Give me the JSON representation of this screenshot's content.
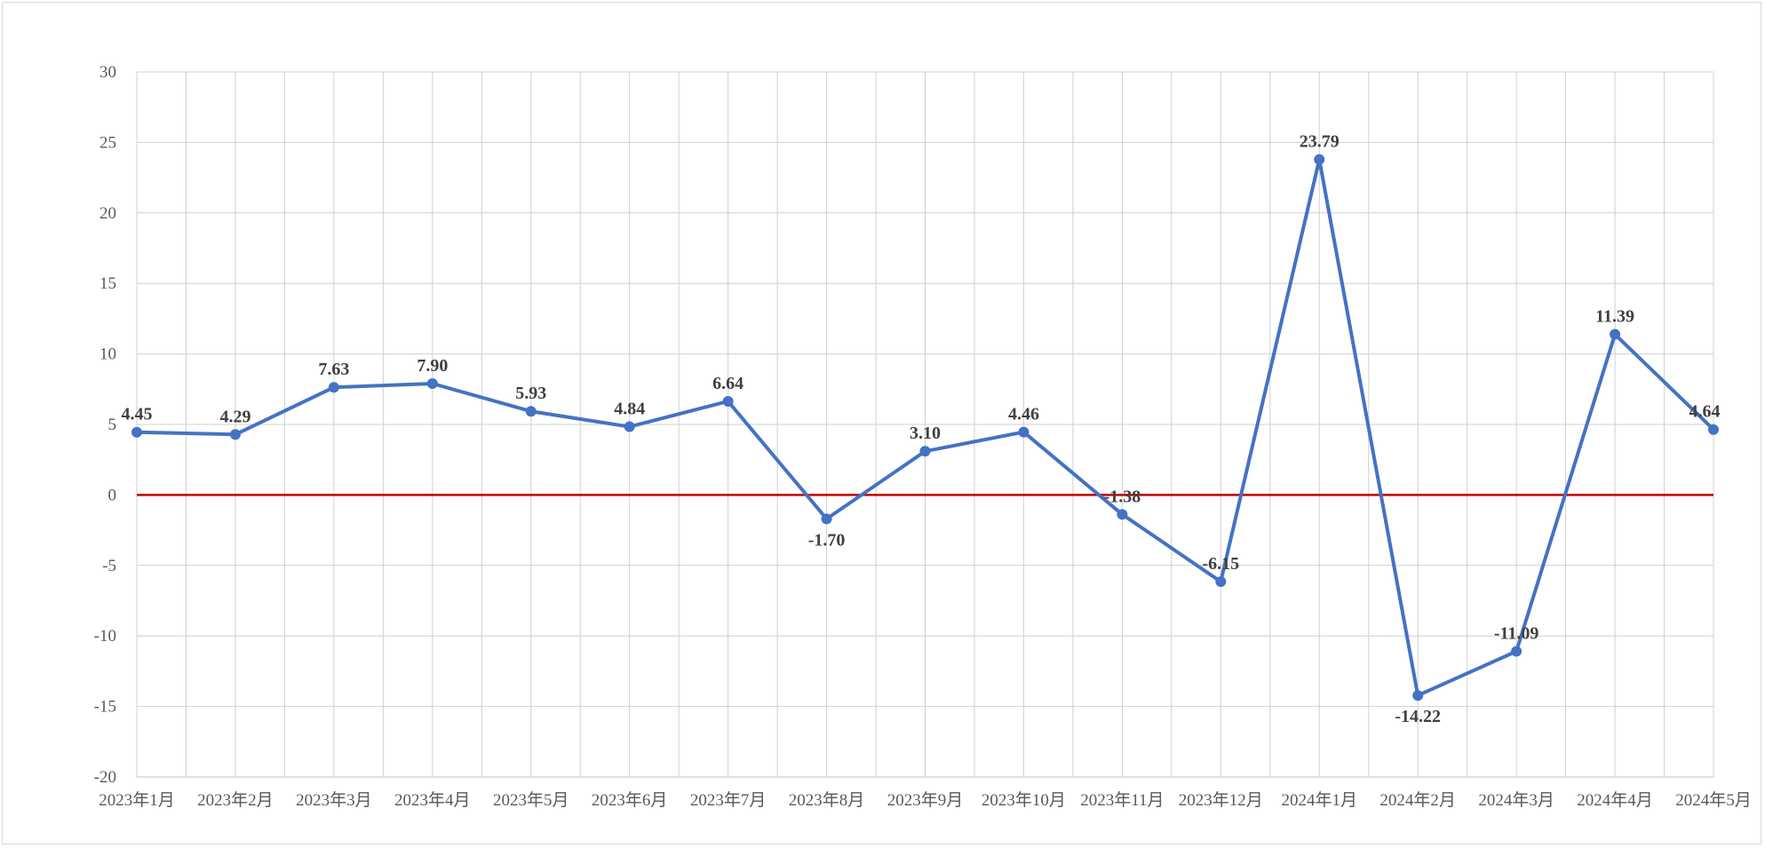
{
  "chart_data": {
    "type": "line",
    "title": "",
    "xlabel": "",
    "ylabel": "",
    "categories": [
      "2023年1月",
      "2023年2月",
      "2023年3月",
      "2023年4月",
      "2023年5月",
      "2023年6月",
      "2023年7月",
      "2023年8月",
      "2023年9月",
      "2023年10月",
      "2023年11月",
      "2023年12月",
      "2024年1月",
      "2024年2月",
      "2024年3月",
      "2024年4月",
      "2024年5月"
    ],
    "series": [
      {
        "values": [
          4.45,
          4.29,
          7.63,
          7.9,
          5.93,
          4.84,
          6.64,
          -1.7,
          3.1,
          4.46,
          -1.38,
          -6.15,
          23.79,
          -14.22,
          -11.09,
          11.39,
          4.64
        ],
        "labels": [
          "4.45",
          "4.29",
          "7.63",
          "7.90",
          "5.93",
          "4.84",
          "6.64",
          "-1.70",
          "3.10",
          "4.46",
          "-1.38",
          "-6.15",
          "23.79",
          "-14.22",
          "-11.09",
          "11.39",
          "4.64"
        ],
        "color": "#4472c4"
      }
    ],
    "ylim": [
      -20,
      30
    ],
    "yticks": [
      30,
      25,
      20,
      15,
      10,
      5,
      0,
      -5,
      -10,
      -15,
      -20
    ],
    "reference_line": {
      "value": 0,
      "color": "#c00000"
    },
    "grid": true,
    "grid_color": "#d0d0d0",
    "legend": "none"
  }
}
